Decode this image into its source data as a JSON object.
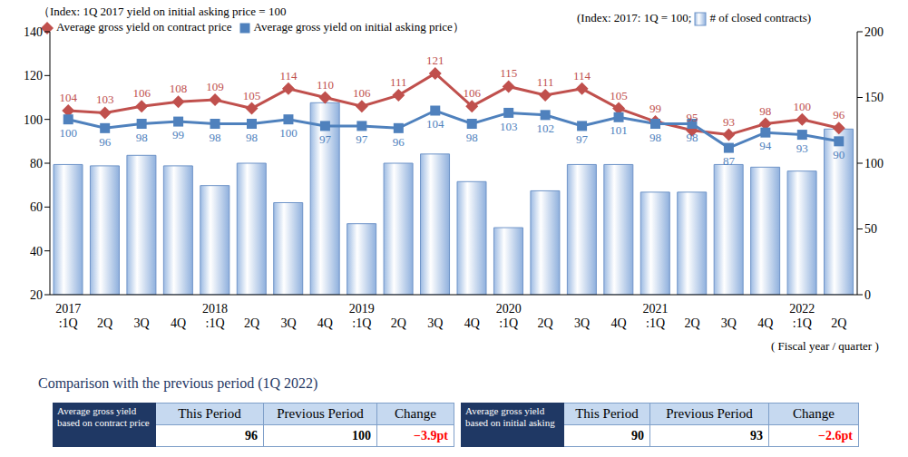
{
  "chart_data": {
    "type": "combo",
    "title": "（Index: 1Q 2017 yield on initial asking price = 100",
    "y2_note": "(Index: 2017: 1Q = 100;",
    "y2_note_end": ")",
    "x_label": "( Fiscal year / quarter )",
    "categories": [
      "2017\n:1Q",
      "2Q",
      "3Q",
      "4Q",
      "2018\n:1Q",
      "2Q",
      "3Q",
      "4Q",
      "2019\n:1Q",
      "2Q",
      "3Q",
      "4Q",
      "2020\n:1Q",
      "2Q",
      "3Q",
      "4Q",
      "2021\n:1Q",
      "2Q",
      "3Q",
      "4Q",
      "2022\n:1Q",
      "2Q"
    ],
    "ylim": [
      20,
      140
    ],
    "yticks": [
      20,
      40,
      60,
      80,
      100,
      120,
      140
    ],
    "y2lim": [
      0,
      200
    ],
    "y2ticks": [
      0,
      50,
      100,
      150,
      200
    ],
    "grid": false,
    "series": [
      {
        "name": "# of closed contracts",
        "type": "bar",
        "axis": "y2",
        "color": "#6f94c8",
        "data_labels": false,
        "values": [
          99,
          98,
          106,
          98,
          83,
          100,
          70,
          146,
          54,
          100,
          107,
          86,
          51,
          79,
          99,
          99,
          78,
          78,
          99,
          97,
          94,
          126
        ]
      },
      {
        "name": "Average gross yield on contract price",
        "type": "line",
        "color": "#c0504d",
        "marker": "diamond",
        "line_style": "solid",
        "data_labels": true,
        "values": [
          104,
          103,
          106,
          108,
          109,
          105,
          114,
          110,
          106,
          111,
          121,
          106,
          115,
          111,
          114,
          105,
          99,
          95,
          93,
          98,
          100,
          96
        ]
      },
      {
        "name": "Average gross yield on initial asking price）",
        "type": "line",
        "color": "#4f81bd",
        "marker": "square",
        "line_style": "solid",
        "data_labels": true,
        "values": [
          100,
          96,
          98,
          99,
          98,
          98,
          100,
          97,
          97,
          96,
          104,
          98,
          103,
          102,
          97,
          101,
          98,
          98,
          87,
          94,
          93,
          90
        ]
      }
    ]
  },
  "comparison": {
    "title": "Comparison with the previous period (1Q 2022)",
    "tables": [
      {
        "label": "Average gross yield based on contract price",
        "headers": [
          "This Period",
          "Previous Period",
          "Change"
        ],
        "row": [
          "96",
          "100",
          "−3.9pt"
        ]
      },
      {
        "label": "Average gross yield based on initial asking",
        "headers": [
          "This Period",
          "Previous Period",
          "Change"
        ],
        "row": [
          "90",
          "93",
          "−2.6pt"
        ]
      }
    ]
  }
}
